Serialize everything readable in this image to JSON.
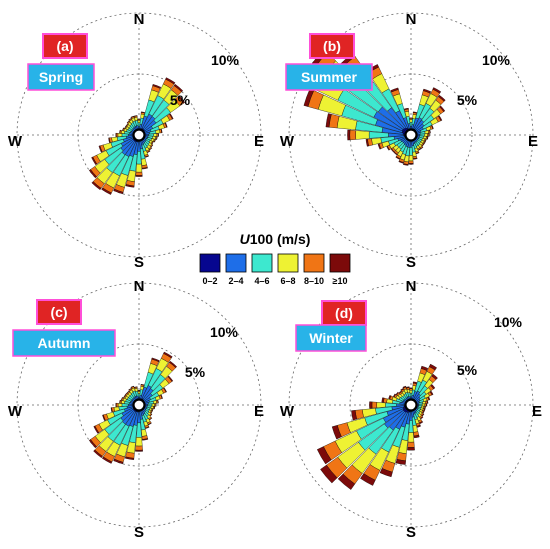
{
  "legend": {
    "title_italic": "U",
    "title_rest": "100 (m/s)",
    "bins": [
      "0–2",
      "2–4",
      "4–6",
      "6–8",
      "8–10",
      "≥10"
    ],
    "colors": [
      "#06068f",
      "#1e6ee8",
      "#3de8cf",
      "#eef233",
      "#f07515",
      "#7c0a0a"
    ]
  },
  "colors": {
    "panel_tag": "#e02424",
    "panel_tag_border": "#ff4fd8",
    "season_tag": "#28b3e8",
    "season_tag_border": "#ff4fd8",
    "grid": "#666666"
  },
  "chart_data": [
    {
      "type": "windrose",
      "panel": "(a)",
      "season": "Spring",
      "directions": [
        "N",
        "E",
        "S",
        "W"
      ],
      "ring_labels": [
        "5%",
        "10%"
      ],
      "sector_count": 36,
      "frequency_percent": [
        0.9,
        1.5,
        3.9,
        4.8,
        4.7,
        4.2,
        2.7,
        2.0,
        1.5,
        1.2,
        1.1,
        1.0,
        0.9,
        1.0,
        1.1,
        1.2,
        1.5,
        2.4,
        3.0,
        3.9,
        4.6,
        5.0,
        5.1,
        4.6,
        3.9,
        3.0,
        2.1,
        1.5,
        1.2,
        1.0,
        0.9,
        0.9,
        1.0,
        1.1,
        1.2,
        1.2
      ],
      "bin_shares": [
        0.04,
        0.27,
        0.35,
        0.22,
        0.09,
        0.03
      ],
      "ring_percent": [
        5,
        10
      ]
    },
    {
      "type": "windrose",
      "panel": "(b)",
      "season": "Summer",
      "directions": [
        "N",
        "E",
        "S",
        "W"
      ],
      "ring_labels": [
        "5%",
        "10%"
      ],
      "sector_count": 36,
      "frequency_percent": [
        1.0,
        1.5,
        3.5,
        3.9,
        3.6,
        3.0,
        2.4,
        1.5,
        1.2,
        1.1,
        1.0,
        0.9,
        0.9,
        0.9,
        1.0,
        1.0,
        1.2,
        1.6,
        2.0,
        2.1,
        2.0,
        1.8,
        1.6,
        1.6,
        1.8,
        2.4,
        3.3,
        4.8,
        6.6,
        8.7,
        9.9,
        9.6,
        7.8,
        6.0,
        3.6,
        1.8
      ],
      "bin_shares": [
        0.04,
        0.26,
        0.33,
        0.23,
        0.1,
        0.04
      ],
      "ring_percent": [
        5,
        10
      ]
    },
    {
      "type": "windrose",
      "panel": "(c)",
      "season": "Autumn",
      "directions": [
        "N",
        "E",
        "S",
        "W"
      ],
      "ring_labels": [
        "5%",
        "10%"
      ],
      "sector_count": 36,
      "frequency_percent": [
        0.8,
        1.3,
        3.6,
        4.4,
        4.0,
        3.0,
        2.1,
        1.6,
        1.2,
        1.0,
        0.9,
        0.8,
        0.8,
        0.9,
        1.1,
        1.4,
        1.6,
        2.5,
        3.4,
        4.1,
        4.6,
        4.9,
        4.9,
        4.6,
        3.7,
        2.7,
        1.9,
        1.5,
        1.2,
        1.1,
        1.0,
        1.0,
        1.0,
        1.1,
        1.2,
        1.1
      ],
      "bin_shares": [
        0.04,
        0.27,
        0.35,
        0.21,
        0.1,
        0.03
      ],
      "ring_percent": [
        5,
        10
      ]
    },
    {
      "type": "windrose",
      "panel": "(d)",
      "season": "Winter",
      "directions": [
        "N",
        "E",
        "S",
        "W"
      ],
      "ring_labels": [
        "5%",
        "10%"
      ],
      "sector_count": 36,
      "frequency_percent": [
        1.0,
        1.5,
        2.9,
        3.3,
        2.7,
        2.0,
        1.6,
        1.2,
        1.0,
        0.9,
        0.8,
        0.8,
        0.8,
        0.9,
        1.0,
        1.3,
        1.5,
        2.3,
        3.3,
        4.5,
        5.7,
        6.9,
        8.1,
        8.7,
        8.1,
        6.3,
        4.5,
        3.0,
        2.0,
        1.5,
        1.2,
        1.1,
        1.0,
        1.1,
        1.2,
        1.1
      ],
      "bin_shares": [
        0.04,
        0.22,
        0.3,
        0.24,
        0.13,
        0.07
      ],
      "ring_percent": [
        5,
        10
      ]
    }
  ]
}
